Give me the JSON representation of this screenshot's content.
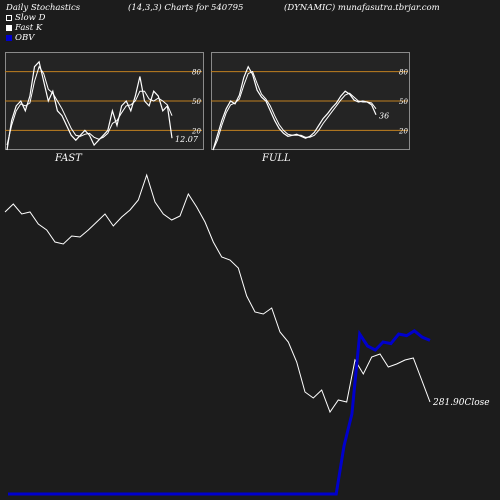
{
  "header": {
    "left": "Daily Stochastics",
    "center": "(14,3,3) Charts for 540795",
    "right": "(DYNAMIC) munafasutra.tbrjar.com"
  },
  "legend": [
    {
      "label": "Slow  D",
      "color": "#ffffff",
      "style": "outline"
    },
    {
      "label": "Fast K",
      "color": "#ffffff",
      "style": "filled"
    },
    {
      "label": "OBV",
      "color": "#0000cc",
      "style": "filled"
    }
  ],
  "colors": {
    "background": "#1c1c1c",
    "panel": "#242424",
    "level_lines": "#c08020",
    "price_line": "#ffffff",
    "obv_line": "#0000cc"
  },
  "chart_data": [
    {
      "type": "line",
      "panel": "FAST",
      "ylim": [
        0,
        100
      ],
      "levels": [
        80,
        50,
        20
      ],
      "level_labels": [
        "80",
        "50",
        "20"
      ],
      "last_value_label": "12.07",
      "series": [
        {
          "name": "Fast K",
          "values": [
            0,
            30,
            45,
            50,
            40,
            55,
            85,
            90,
            70,
            50,
            60,
            40,
            35,
            25,
            15,
            10,
            15,
            20,
            15,
            5,
            10,
            15,
            20,
            40,
            25,
            45,
            50,
            40,
            55,
            75,
            50,
            45,
            60,
            55,
            40,
            45,
            12
          ]
        },
        {
          "name": "Slow  D",
          "values": [
            5,
            25,
            40,
            47,
            45,
            48,
            70,
            85,
            78,
            62,
            58,
            50,
            42,
            32,
            22,
            15,
            14,
            16,
            17,
            13,
            11,
            13,
            17,
            27,
            30,
            38,
            45,
            46,
            50,
            60,
            60,
            52,
            50,
            53,
            50,
            46,
            35
          ]
        }
      ]
    },
    {
      "type": "line",
      "panel": "FULL",
      "ylim": [
        0,
        100
      ],
      "levels": [
        80,
        50,
        20
      ],
      "level_labels": [
        "80",
        "50",
        "20"
      ],
      "last_value_label": "36",
      "series": [
        {
          "name": "Fast K",
          "values": [
            0,
            15,
            30,
            42,
            50,
            47,
            56,
            74,
            85,
            77,
            61,
            54,
            50,
            40,
            30,
            22,
            17,
            14,
            15,
            16,
            14,
            12,
            14,
            18,
            25,
            32,
            37,
            43,
            48,
            55,
            60,
            57,
            51,
            49,
            50,
            49,
            46,
            36
          ]
        },
        {
          "name": "Slow  D",
          "values": [
            0,
            10,
            25,
            38,
            46,
            48,
            52,
            66,
            78,
            80,
            68,
            57,
            52,
            45,
            35,
            26,
            20,
            16,
            15,
            15,
            15,
            13,
            13,
            15,
            20,
            27,
            33,
            39,
            45,
            51,
            56,
            58,
            54,
            50,
            49,
            49,
            48,
            42
          ]
        }
      ]
    },
    {
      "type": "line",
      "panel": "price",
      "last_value_label": "281.90Close",
      "series": [
        {
          "name": "price",
          "values": [
            250,
            258,
            248,
            250,
            238,
            232,
            220,
            218,
            226,
            225,
            232,
            240,
            248,
            236,
            245,
            252,
            262,
            287,
            260,
            248,
            242,
            246,
            268,
            255,
            240,
            220,
            205,
            202,
            194,
            166,
            150,
            148,
            154,
            130,
            120,
            100,
            70,
            64,
            72,
            50,
            62,
            60,
            102,
            88,
            105,
            108,
            95,
            98,
            102,
            104,
            82,
            60
          ]
        },
        {
          "name": "OBV",
          "values": [
            0,
            0,
            0,
            0,
            0,
            0,
            0,
            0,
            0,
            0,
            0,
            0,
            0,
            0,
            0,
            0,
            0,
            0,
            0,
            0,
            0,
            0,
            0,
            0,
            0,
            0,
            0,
            0,
            0,
            0,
            0,
            0,
            0,
            0,
            0,
            0,
            0,
            0,
            0,
            0,
            0,
            0,
            0,
            60,
            100,
            200,
            185,
            180,
            190,
            188,
            200,
            198,
            204,
            196,
            192
          ]
        }
      ]
    }
  ],
  "panel_labels": {
    "fast": "FAST",
    "full": "FULL"
  }
}
